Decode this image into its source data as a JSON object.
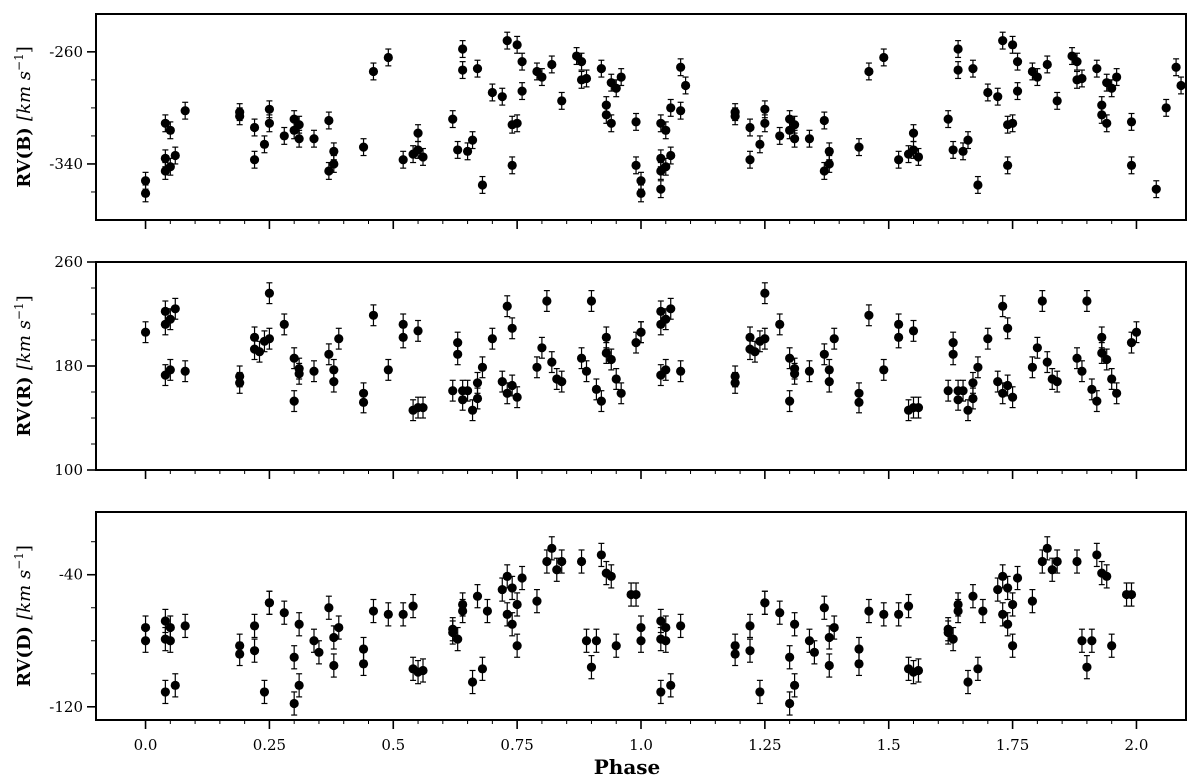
{
  "chart_data": [
    {
      "type": "scatter",
      "panel": "B",
      "ylabel": "RV(B) [km s−1]",
      "ylabel_main": "RV(B)",
      "ylabel_unit": "[km s",
      "ylabel_exp": "−1",
      "ylabel_close": "]",
      "xlim": [
        -0.1,
        2.1
      ],
      "ylim": [
        -380,
        -233
      ],
      "yticks": [
        -260,
        -340
      ],
      "ytick_labels": [
        "-260",
        "-340"
      ],
      "yminor": [
        -280,
        -300,
        -320,
        -360
      ],
      "xticks": [
        0,
        0.25,
        0.5,
        0.75,
        1,
        1.25,
        1.5,
        1.75,
        2
      ],
      "error_bar": 6,
      "points": [
        [
          0.0,
          -361
        ],
        [
          0.0,
          -352
        ],
        [
          0.04,
          -345
        ],
        [
          0.04,
          -336
        ],
        [
          0.04,
          -311
        ],
        [
          0.05,
          -342
        ],
        [
          0.05,
          -316
        ],
        [
          0.06,
          -334
        ],
        [
          0.08,
          -302
        ],
        [
          0.19,
          -303
        ],
        [
          0.19,
          -306
        ],
        [
          0.22,
          -314
        ],
        [
          0.22,
          -337
        ],
        [
          0.24,
          -326
        ],
        [
          0.25,
          -301
        ],
        [
          0.25,
          -311
        ],
        [
          0.28,
          -320
        ],
        [
          0.3,
          -308
        ],
        [
          0.3,
          -316
        ],
        [
          0.31,
          -322
        ],
        [
          0.31,
          -312
        ],
        [
          0.34,
          -322
        ],
        [
          0.37,
          -309
        ],
        [
          0.37,
          -345
        ],
        [
          0.38,
          -331
        ],
        [
          0.38,
          -340
        ],
        [
          0.44,
          -328
        ],
        [
          0.46,
          -274
        ],
        [
          0.49,
          -264
        ],
        [
          0.52,
          -337
        ],
        [
          0.54,
          -333
        ],
        [
          0.55,
          -330
        ],
        [
          0.55,
          -318
        ],
        [
          0.56,
          -335
        ],
        [
          0.62,
          -308
        ],
        [
          0.63,
          -330
        ],
        [
          0.64,
          -258
        ],
        [
          0.64,
          -273
        ],
        [
          0.65,
          -331
        ],
        [
          0.66,
          -323
        ],
        [
          0.67,
          -272
        ],
        [
          0.68,
          -355
        ],
        [
          0.7,
          -289
        ],
        [
          0.72,
          -292
        ],
        [
          0.73,
          -252
        ],
        [
          0.74,
          -312
        ],
        [
          0.74,
          -341
        ],
        [
          0.75,
          -255
        ],
        [
          0.75,
          -311
        ],
        [
          0.76,
          -288
        ],
        [
          0.76,
          -267
        ],
        [
          0.79,
          -274
        ],
        [
          0.8,
          -278
        ],
        [
          0.82,
          -269
        ],
        [
          0.84,
          -295
        ],
        [
          0.87,
          -263
        ],
        [
          0.88,
          -267
        ],
        [
          0.88,
          -280
        ],
        [
          0.89,
          -279
        ],
        [
          0.92,
          -272
        ],
        [
          0.93,
          -298
        ],
        [
          0.93,
          -305
        ],
        [
          0.94,
          -311
        ],
        [
          0.94,
          -282
        ],
        [
          0.95,
          -286
        ],
        [
          0.96,
          -278
        ],
        [
          0.99,
          -310
        ],
        [
          0.99,
          -341
        ],
        [
          1.04,
          -358
        ],
        [
          1.06,
          -300
        ],
        [
          1.08,
          -271
        ],
        [
          1.09,
          -284
        ]
      ],
      "series_color": "#000000"
    },
    {
      "type": "scatter",
      "panel": "R",
      "ylabel": "RV(R) [km s−1]",
      "ylabel_main": "RV(R)",
      "ylabel_unit": "[km s",
      "ylabel_exp": "−1",
      "ylabel_close": "]",
      "xlim": [
        -0.1,
        2.1
      ],
      "ylim": [
        100,
        260
      ],
      "yticks": [
        260,
        180,
        100
      ],
      "ytick_labels": [
        "260",
        "180",
        "100"
      ],
      "yminor": [
        240,
        220,
        200,
        160,
        140,
        120
      ],
      "xticks": [
        0,
        0.25,
        0.5,
        0.75,
        1,
        1.25,
        1.5,
        1.75,
        2
      ],
      "error_bar": 8,
      "points": [
        [
          0.0,
          206
        ],
        [
          0.04,
          173
        ],
        [
          0.04,
          212
        ],
        [
          0.04,
          222
        ],
        [
          0.05,
          177
        ],
        [
          0.05,
          216
        ],
        [
          0.06,
          224
        ],
        [
          0.08,
          176
        ],
        [
          0.19,
          172
        ],
        [
          0.19,
          167
        ],
        [
          0.22,
          193
        ],
        [
          0.22,
          202
        ],
        [
          0.23,
          191
        ],
        [
          0.24,
          199
        ],
        [
          0.25,
          236
        ],
        [
          0.25,
          201
        ],
        [
          0.28,
          212
        ],
        [
          0.3,
          153
        ],
        [
          0.3,
          186
        ],
        [
          0.31,
          174
        ],
        [
          0.31,
          178
        ],
        [
          0.34,
          176
        ],
        [
          0.37,
          189
        ],
        [
          0.38,
          168
        ],
        [
          0.38,
          177
        ],
        [
          0.39,
          201
        ],
        [
          0.44,
          159
        ],
        [
          0.44,
          152
        ],
        [
          0.46,
          219
        ],
        [
          0.49,
          177
        ],
        [
          0.52,
          212
        ],
        [
          0.52,
          202
        ],
        [
          0.54,
          146
        ],
        [
          0.55,
          148
        ],
        [
          0.55,
          207
        ],
        [
          0.56,
          148
        ],
        [
          0.62,
          161
        ],
        [
          0.63,
          198
        ],
        [
          0.63,
          189
        ],
        [
          0.64,
          161
        ],
        [
          0.64,
          154
        ],
        [
          0.65,
          161
        ],
        [
          0.66,
          146
        ],
        [
          0.67,
          155
        ],
        [
          0.67,
          167
        ],
        [
          0.68,
          179
        ],
        [
          0.7,
          201
        ],
        [
          0.72,
          168
        ],
        [
          0.73,
          226
        ],
        [
          0.73,
          159
        ],
        [
          0.74,
          209
        ],
        [
          0.74,
          165
        ],
        [
          0.75,
          156
        ],
        [
          0.79,
          179
        ],
        [
          0.8,
          194
        ],
        [
          0.81,
          230
        ],
        [
          0.82,
          183
        ],
        [
          0.83,
          170
        ],
        [
          0.84,
          168
        ],
        [
          0.88,
          186
        ],
        [
          0.89,
          176
        ],
        [
          0.9,
          230
        ],
        [
          0.91,
          162
        ],
        [
          0.92,
          153
        ],
        [
          0.93,
          190
        ],
        [
          0.93,
          202
        ],
        [
          0.94,
          185
        ],
        [
          0.95,
          170
        ],
        [
          0.96,
          159
        ],
        [
          0.99,
          198
        ],
        [
          1.0,
          206
        ]
      ],
      "series_color": "#000000"
    },
    {
      "type": "scatter",
      "panel": "D",
      "ylabel": "RV(D) [km s−1]",
      "ylabel_main": "RV(D)",
      "ylabel_unit": "[km s",
      "ylabel_exp": "−1",
      "ylabel_close": "]",
      "xlim": [
        -0.1,
        2.1
      ],
      "ylim": [
        -128,
        -2
      ],
      "yticks": [
        -40,
        -120
      ],
      "ytick_labels": [
        "-40",
        "-120"
      ],
      "yminor": [
        -20,
        -60,
        -80,
        -100
      ],
      "xticks": [
        0,
        0.25,
        0.5,
        0.75,
        1,
        1.25,
        1.5,
        1.75,
        2
      ],
      "error_bar": 7,
      "points": [
        [
          0.0,
          -72
        ],
        [
          0.0,
          -80
        ],
        [
          0.04,
          -111
        ],
        [
          0.04,
          -68
        ],
        [
          0.04,
          -79
        ],
        [
          0.05,
          -72
        ],
        [
          0.05,
          -80
        ],
        [
          0.06,
          -107
        ],
        [
          0.08,
          -71
        ],
        [
          0.19,
          -83
        ],
        [
          0.19,
          -88
        ],
        [
          0.22,
          -71
        ],
        [
          0.22,
          -86
        ],
        [
          0.24,
          -111
        ],
        [
          0.25,
          -57
        ],
        [
          0.25,
          -57
        ],
        [
          0.28,
          -63
        ],
        [
          0.3,
          -90
        ],
        [
          0.3,
          -118
        ],
        [
          0.31,
          -107
        ],
        [
          0.31,
          -70
        ],
        [
          0.34,
          -80
        ],
        [
          0.35,
          -87
        ],
        [
          0.37,
          -60
        ],
        [
          0.38,
          -78
        ],
        [
          0.38,
          -95
        ],
        [
          0.39,
          -72
        ],
        [
          0.44,
          -85
        ],
        [
          0.44,
          -94
        ],
        [
          0.46,
          -62
        ],
        [
          0.49,
          -64
        ],
        [
          0.52,
          -64
        ],
        [
          0.54,
          -59
        ],
        [
          0.54,
          -97
        ],
        [
          0.55,
          -99
        ],
        [
          0.56,
          -98
        ],
        [
          0.62,
          -73
        ],
        [
          0.62,
          -75
        ],
        [
          0.63,
          -79
        ],
        [
          0.64,
          -62
        ],
        [
          0.64,
          -58
        ],
        [
          0.66,
          -105
        ],
        [
          0.67,
          -53
        ],
        [
          0.68,
          -97
        ],
        [
          0.69,
          -62
        ],
        [
          0.72,
          -49
        ],
        [
          0.73,
          -41
        ],
        [
          0.73,
          -64
        ],
        [
          0.74,
          -70
        ],
        [
          0.74,
          -48
        ],
        [
          0.75,
          -83
        ],
        [
          0.75,
          -58
        ],
        [
          0.76,
          -42
        ],
        [
          0.79,
          -56
        ],
        [
          0.81,
          -32
        ],
        [
          0.82,
          -24
        ],
        [
          0.83,
          -37
        ],
        [
          0.84,
          -32
        ],
        [
          0.88,
          -32
        ],
        [
          0.89,
          -80
        ],
        [
          0.9,
          -96
        ],
        [
          0.91,
          -80
        ],
        [
          0.92,
          -28
        ],
        [
          0.93,
          -39
        ],
        [
          0.94,
          -41
        ],
        [
          0.95,
          -83
        ],
        [
          0.98,
          -52
        ],
        [
          0.99,
          -52
        ]
      ],
      "series_color": "#000000"
    }
  ],
  "xlabel": "Phase",
  "xtick_labels": [
    "0.0",
    "0.25",
    "0.5",
    "0.75",
    "1.0",
    "1.25",
    "1.5",
    "1.75",
    "2.0"
  ]
}
